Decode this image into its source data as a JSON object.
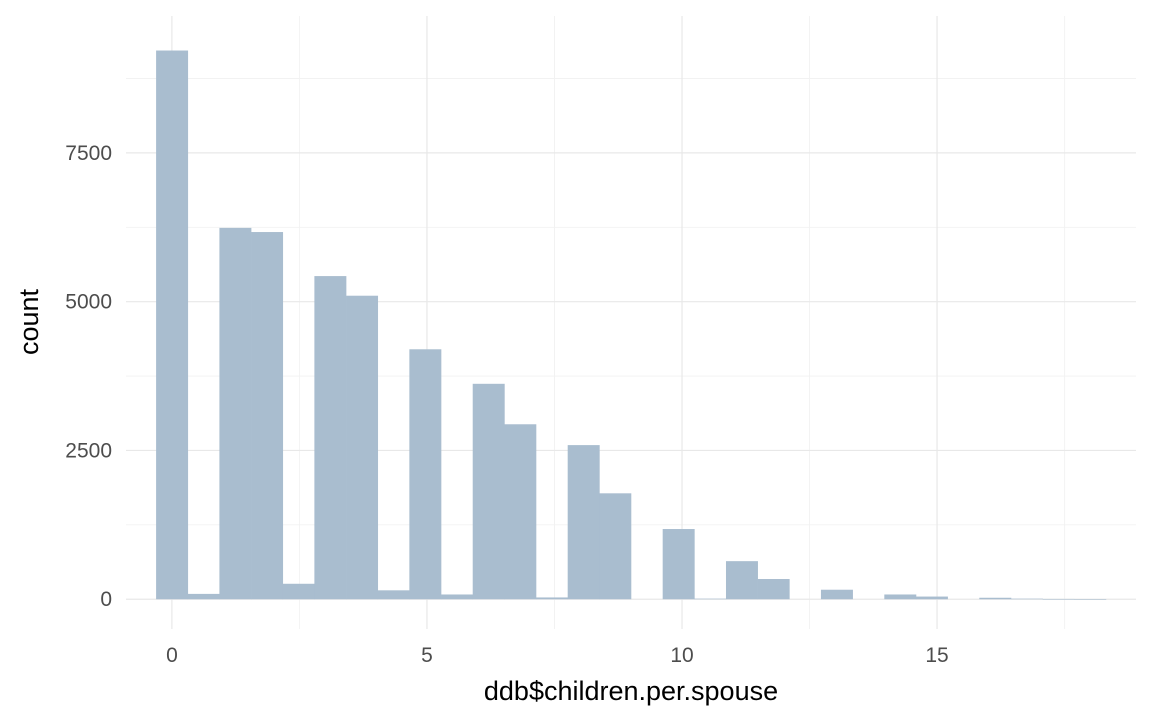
{
  "chart_data": {
    "type": "bar",
    "subtype": "histogram",
    "title": "",
    "xlabel": "ddb$children.per.spouse",
    "ylabel": "count",
    "bin_width": 0.621,
    "xlim": [
      -0.9,
      18.9
    ],
    "ylim": [
      -500,
      9800
    ],
    "x_ticks": [
      0,
      5,
      10,
      15
    ],
    "y_ticks": [
      0,
      2500,
      5000,
      7500
    ],
    "bins": [
      {
        "x_start": -0.31,
        "count": 9220
      },
      {
        "x_start": 0.31,
        "count": 90
      },
      {
        "x_start": 0.931,
        "count": 6240
      },
      {
        "x_start": 1.552,
        "count": 6170
      },
      {
        "x_start": 2.172,
        "count": 260
      },
      {
        "x_start": 2.793,
        "count": 5430
      },
      {
        "x_start": 3.414,
        "count": 5100
      },
      {
        "x_start": 4.034,
        "count": 150
      },
      {
        "x_start": 4.655,
        "count": 4200
      },
      {
        "x_start": 5.276,
        "count": 80
      },
      {
        "x_start": 5.897,
        "count": 3620
      },
      {
        "x_start": 6.517,
        "count": 2940
      },
      {
        "x_start": 7.138,
        "count": 30
      },
      {
        "x_start": 7.759,
        "count": 2590
      },
      {
        "x_start": 8.379,
        "count": 1780
      },
      {
        "x_start": 9.0,
        "count": 0
      },
      {
        "x_start": 9.621,
        "count": 1180
      },
      {
        "x_start": 10.241,
        "count": 10
      },
      {
        "x_start": 10.862,
        "count": 640
      },
      {
        "x_start": 11.483,
        "count": 340
      },
      {
        "x_start": 12.103,
        "count": 0
      },
      {
        "x_start": 12.724,
        "count": 160
      },
      {
        "x_start": 13.345,
        "count": 0
      },
      {
        "x_start": 13.966,
        "count": 80
      },
      {
        "x_start": 14.586,
        "count": 45
      },
      {
        "x_start": 15.207,
        "count": 0
      },
      {
        "x_start": 15.828,
        "count": 25
      },
      {
        "x_start": 16.448,
        "count": 10
      },
      {
        "x_start": 17.069,
        "count": 5
      },
      {
        "x_start": 17.69,
        "count": 3
      }
    ],
    "grid": true,
    "legend": "none",
    "bar_color": "#a9bdcf",
    "colors": {
      "background": "#ffffff",
      "grid_major": "#e8e8e8",
      "grid_minor": "#f2f2f2",
      "tick_label": "#4d4d4d",
      "axis_title": "#000000"
    }
  }
}
